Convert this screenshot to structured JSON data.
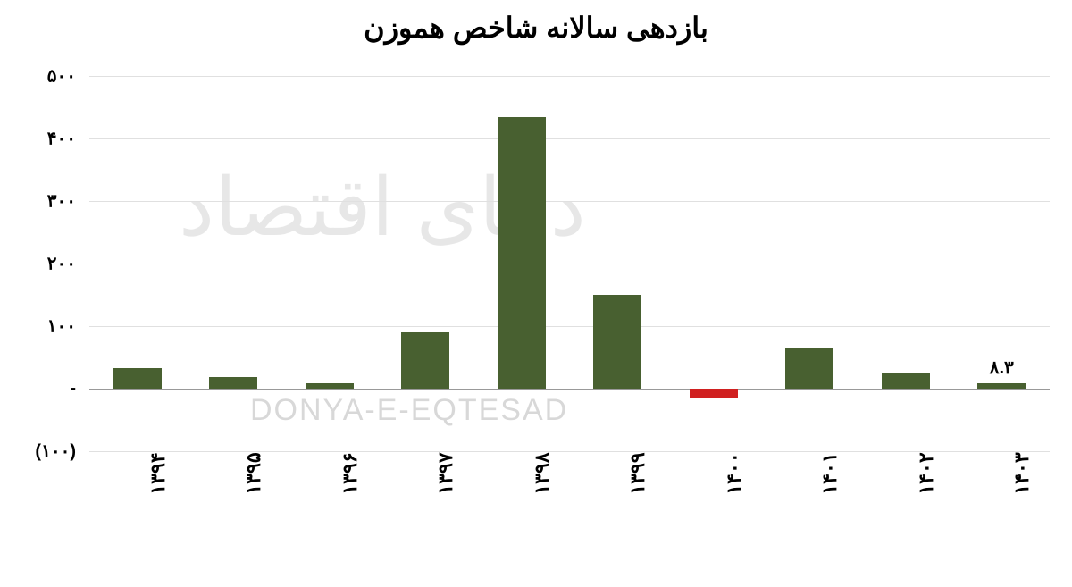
{
  "chart": {
    "type": "bar",
    "title": "بازدهی سالانه شاخص هموزن",
    "title_fontsize": 32,
    "title_fontweight": "bold",
    "background_color": "#ffffff",
    "grid_color": "#e0e0e0",
    "axis_color": "#999999",
    "text_color": "#000000",
    "ylim": [
      -100,
      500
    ],
    "ytick_step": 100,
    "yticks": [
      {
        "value": 500,
        "label": "۵۰۰"
      },
      {
        "value": 400,
        "label": "۴۰۰"
      },
      {
        "value": 300,
        "label": "۳۰۰"
      },
      {
        "value": 200,
        "label": "۲۰۰"
      },
      {
        "value": 100,
        "label": "۱۰۰"
      },
      {
        "value": 0,
        "label": "-"
      },
      {
        "value": -100,
        "label": "(۱۰۰)"
      }
    ],
    "categories": [
      "۱۳۹۴",
      "۱۳۹۵",
      "۱۳۹۶",
      "۱۳۹۷",
      "۱۳۹۸",
      "۱۳۹۹",
      "۱۴۰۰",
      "۱۴۰۱",
      "۱۴۰۲",
      "۱۴۰۳"
    ],
    "values": [
      33,
      18,
      9,
      90,
      435,
      150,
      -15,
      65,
      25,
      8.3
    ],
    "bar_colors": [
      "#486030",
      "#486030",
      "#486030",
      "#486030",
      "#486030",
      "#486030",
      "#d02020",
      "#486030",
      "#486030",
      "#486030"
    ],
    "positive_color": "#486030",
    "negative_color": "#d02020",
    "bar_width_ratio": 0.5,
    "data_labels": [
      null,
      null,
      null,
      null,
      null,
      null,
      null,
      null,
      null,
      "۸.۳"
    ],
    "x_label_fontsize": 22,
    "y_label_fontsize": 20,
    "watermark_latin": "DONYA-E-EQTESAD",
    "watermark_latin_color": "#d8d8d8",
    "watermark_latin_fontsize": 34,
    "watermark_persian": "دنیای اقتصاد",
    "watermark_persian_color": "#d8d8d8",
    "watermark_persian_fontsize": 90
  }
}
